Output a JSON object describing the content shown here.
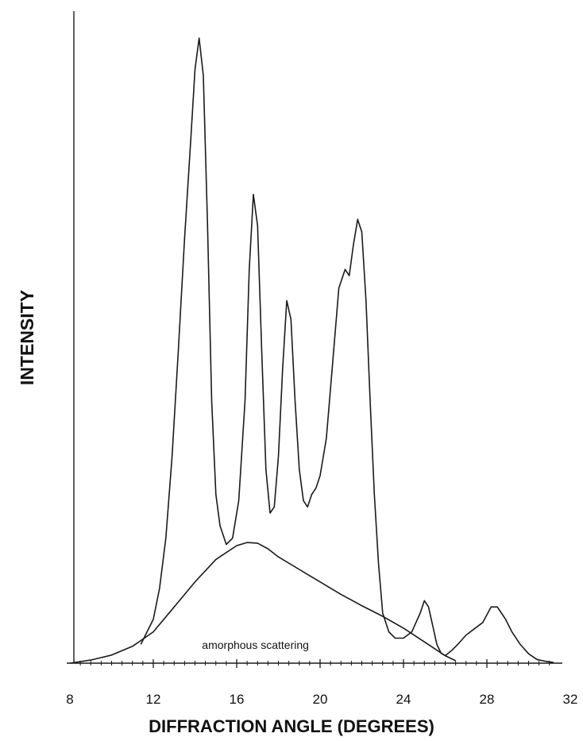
{
  "chart_data": {
    "type": "line",
    "title": "",
    "xlabel": "DIFFRACTION ANGLE (DEGREES)",
    "ylabel": "INTENSITY",
    "xlim": [
      8,
      32
    ],
    "ylim": [
      0,
      100
    ],
    "x_ticks": [
      8,
      12,
      16,
      20,
      24,
      28,
      32
    ],
    "x_minor_step": 0.5,
    "grid": false,
    "legend": "none",
    "annotations": [
      {
        "text": "amorphous scattering",
        "x": 16.9,
        "y": 2.3
      }
    ],
    "series": [
      {
        "x": [
          11.4,
          11.7,
          12.0,
          12.3,
          12.6,
          12.9,
          13.2,
          13.5,
          13.8,
          14.0,
          14.2,
          14.4,
          14.6,
          14.8,
          15.0,
          15.2,
          15.5,
          15.8,
          16.1,
          16.4,
          16.6,
          16.8,
          17.0,
          17.2,
          17.4,
          17.6,
          17.8,
          18.0,
          18.2,
          18.4,
          18.6,
          18.8,
          19.0,
          19.2,
          19.4,
          19.6,
          19.8,
          20.0,
          20.3,
          20.6,
          20.9,
          21.2,
          21.4,
          21.6,
          21.8,
          22.0,
          22.2,
          22.4,
          22.6,
          22.8,
          23.0,
          23.3,
          23.6,
          24.0,
          24.4,
          24.8,
          25.0,
          25.2,
          25.4,
          25.6,
          25.8,
          26.0,
          26.3,
          26.6,
          27.0,
          27.4,
          27.8,
          28.2,
          28.5,
          28.7,
          28.9,
          29.2,
          29.6,
          30.0,
          30.4,
          30.8,
          31.2
        ],
        "values": [
          3,
          5,
          7,
          12,
          20,
          33,
          50,
          68,
          84,
          95,
          100,
          94,
          70,
          42,
          27,
          22,
          19,
          20,
          26,
          42,
          63,
          75,
          70,
          50,
          31,
          24,
          25,
          33,
          47,
          58,
          55,
          42,
          31,
          26,
          25,
          27,
          28,
          30,
          36,
          48,
          60,
          63,
          62,
          67,
          71,
          69,
          58,
          42,
          27,
          16,
          8,
          5,
          4,
          4,
          5,
          8,
          10,
          9,
          6,
          3,
          1.6,
          1.2,
          2,
          3,
          4.5,
          5.5,
          6.5,
          9,
          9,
          8,
          7,
          5,
          3,
          1.5,
          0.6,
          0.3,
          0.1
        ]
      },
      {
        "x": [
          8.0,
          9.0,
          10.0,
          11.0,
          12.0,
          13.0,
          14.0,
          15.0,
          16.0,
          16.5,
          17.0,
          17.5,
          18.0,
          19.0,
          20.0,
          21.0,
          22.0,
          23.0,
          24.0,
          25.0,
          26.0,
          26.5
        ],
        "values": [
          0,
          0.5,
          1.3,
          2.7,
          5,
          9,
          13,
          16.6,
          18.8,
          19.3,
          19.2,
          18.3,
          17,
          15,
          13,
          11,
          9.2,
          7.5,
          5.6,
          3.4,
          1.2,
          0.4
        ]
      }
    ]
  }
}
